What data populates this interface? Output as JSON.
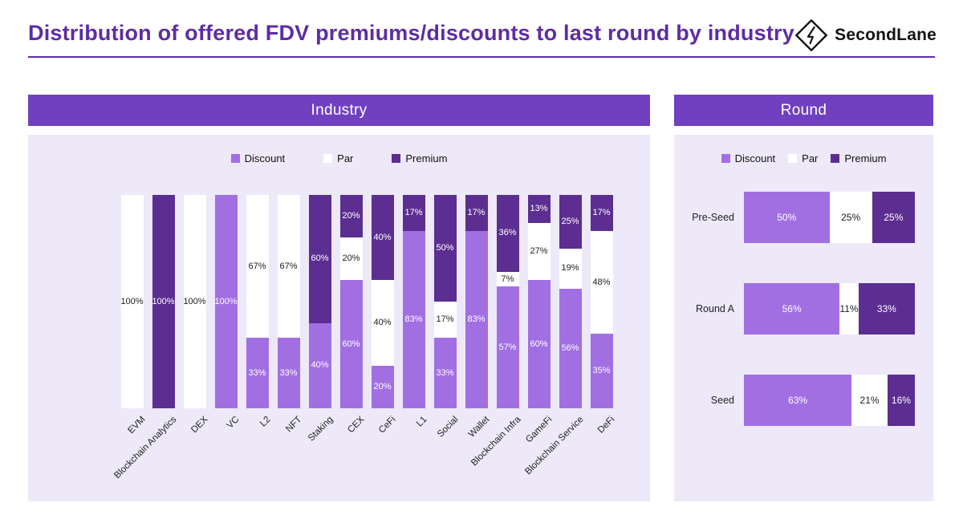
{
  "page": {
    "title": "Distribution of offered FDV premiums/discounts to last round by industry",
    "brand": "SecondLane"
  },
  "colors": {
    "title_text": "#5E2CA5",
    "header_bar": "#7040C0",
    "panel_bg": "#EDE9F8",
    "discount": "#A26FE3",
    "par": "#FFFFFF",
    "premium": "#5C2E91"
  },
  "legend": [
    "Discount",
    "Par",
    "Premium"
  ],
  "panels": {
    "industry": {
      "title": "Industry"
    },
    "round": {
      "title": "Round"
    }
  },
  "chart_data": [
    {
      "type": "bar",
      "orientation": "vertical",
      "stacked": true,
      "title": "Industry",
      "unit": "%",
      "ylim": [
        0,
        100
      ],
      "grid": false,
      "legend_position": "top",
      "categories": [
        "EVM",
        "Blockchain Analytics",
        "DEX",
        "VC",
        "L2",
        "NFT",
        "Staking",
        "CEX",
        "CeFi",
        "L1",
        "Social",
        "Wallet",
        "Blockchain Infra",
        "GameFi",
        "Blockchain Service",
        "DeFi"
      ],
      "series": [
        {
          "name": "Discount",
          "values": [
            0,
            0,
            0,
            100,
            33,
            33,
            40,
            60,
            20,
            83,
            33,
            83,
            57,
            60,
            56,
            35
          ]
        },
        {
          "name": "Par",
          "values": [
            100,
            0,
            100,
            0,
            67,
            67,
            0,
            20,
            40,
            0,
            17,
            0,
            7,
            27,
            19,
            48
          ]
        },
        {
          "name": "Premium",
          "values": [
            0,
            100,
            0,
            0,
            0,
            0,
            60,
            20,
            40,
            17,
            50,
            17,
            36,
            13,
            25,
            17
          ]
        }
      ]
    },
    {
      "type": "bar",
      "orientation": "horizontal",
      "stacked": true,
      "title": "Round",
      "unit": "%",
      "xlim": [
        0,
        100
      ],
      "grid": false,
      "legend_position": "top",
      "categories": [
        "Pre-Seed",
        "Round A",
        "Seed"
      ],
      "series": [
        {
          "name": "Discount",
          "values": [
            50,
            56,
            63
          ]
        },
        {
          "name": "Par",
          "values": [
            25,
            11,
            21
          ]
        },
        {
          "name": "Premium",
          "values": [
            25,
            33,
            16
          ]
        }
      ]
    }
  ]
}
